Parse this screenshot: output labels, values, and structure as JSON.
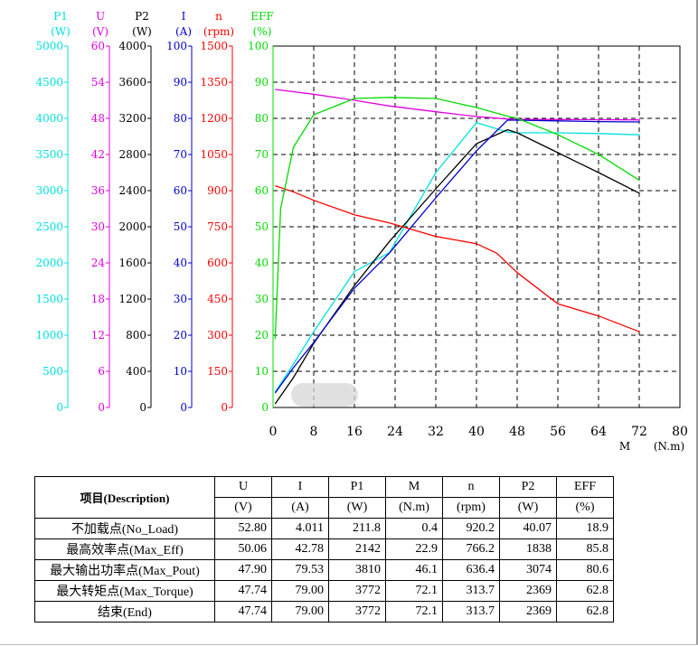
{
  "chart_data": {
    "type": "line",
    "x_axis": {
      "label": "M",
      "unit": "(N.m)",
      "range": [
        0,
        80
      ],
      "ticks": [
        "0",
        "8",
        "16",
        "24",
        "32",
        "40",
        "48",
        "56",
        "64",
        "72",
        "80"
      ]
    },
    "y_axes": [
      {
        "id": "P1",
        "label": "P1",
        "unit": "(W)",
        "color": "#00e0e0",
        "range": [
          0,
          5000
        ],
        "ticks": [
          "0",
          "500",
          "1000",
          "1500",
          "2000",
          "2500",
          "3000",
          "3500",
          "4000",
          "4500",
          "5000"
        ]
      },
      {
        "id": "U",
        "label": "U",
        "unit": "(V)",
        "color": "#e000e0",
        "range": [
          0,
          60
        ],
        "ticks": [
          "0",
          "6",
          "12",
          "18",
          "24",
          "30",
          "36",
          "42",
          "48",
          "54",
          "60"
        ]
      },
      {
        "id": "P2",
        "label": "P2",
        "unit": "(W)",
        "color": "#000000",
        "range": [
          0,
          4000
        ],
        "ticks": [
          "0",
          "400",
          "800",
          "1200",
          "1600",
          "2000",
          "2400",
          "2800",
          "3200",
          "3600",
          "4000"
        ]
      },
      {
        "id": "I",
        "label": "I",
        "unit": "(A)",
        "color": "#0000cc",
        "range": [
          0,
          100
        ],
        "ticks": [
          "0",
          "10",
          "20",
          "30",
          "40",
          "50",
          "60",
          "70",
          "80",
          "90",
          "100"
        ]
      },
      {
        "id": "n",
        "label": "n",
        "unit": "(rpm)",
        "color": "#ff0000",
        "range": [
          0,
          1500
        ],
        "ticks": [
          "0",
          "150",
          "300",
          "450",
          "600",
          "750",
          "900",
          "1050",
          "1200",
          "1350",
          "1500"
        ]
      },
      {
        "id": "EFF",
        "label": "EFF",
        "unit": "(%)",
        "color": "#00dd00",
        "range": [
          0,
          100
        ],
        "ticks": [
          "0",
          "10",
          "20",
          "30",
          "40",
          "50",
          "60",
          "70",
          "80",
          "90",
          "100"
        ]
      }
    ],
    "series": [
      {
        "axis": "P1",
        "color": "#00e0e0",
        "x": [
          0.4,
          4,
          8,
          16,
          22.9,
          32,
          40,
          46.1,
          48,
          56,
          64,
          72.1
        ],
        "y": [
          211.8,
          600,
          1050,
          1880,
          2142,
          3250,
          3940,
          3810,
          3800,
          3800,
          3790,
          3772
        ]
      },
      {
        "axis": "U",
        "color": "#e000e0",
        "x": [
          0.4,
          8,
          16,
          22.9,
          32,
          40,
          46.1,
          48,
          56,
          64,
          72.1
        ],
        "y": [
          52.8,
          52.0,
          51.0,
          50.06,
          49.1,
          48.3,
          47.9,
          47.85,
          47.8,
          47.78,
          47.74
        ]
      },
      {
        "axis": "P2",
        "color": "#000000",
        "x": [
          0.4,
          4,
          8,
          16,
          22.9,
          32,
          40,
          46.1,
          48,
          56,
          64,
          72.1
        ],
        "y": [
          40.07,
          330,
          710,
          1350,
          1838,
          2420,
          2920,
          3074,
          3040,
          2820,
          2600,
          2369
        ]
      },
      {
        "axis": "I",
        "color": "#0000cc",
        "x": [
          0.4,
          4,
          8,
          16,
          22.9,
          32,
          40,
          46.1,
          48,
          56,
          64,
          72.1
        ],
        "y": [
          4.011,
          11,
          18,
          33,
          42.78,
          58,
          71,
          79.53,
          79.5,
          79.3,
          79.1,
          79.0
        ]
      },
      {
        "axis": "n",
        "color": "#ff0000",
        "x": [
          0.4,
          4,
          8,
          16,
          22.9,
          32,
          40,
          44,
          48,
          56,
          64,
          72.1
        ],
        "y": [
          920.2,
          895,
          860,
          800,
          766.2,
          710,
          680,
          640,
          560,
          430,
          380,
          313.7
        ]
      },
      {
        "axis": "EFF",
        "color": "#00dd00",
        "x": [
          0.4,
          1.5,
          4,
          8,
          16,
          22.9,
          32,
          40,
          46.1,
          48,
          56,
          64,
          72.1
        ],
        "y": [
          18.9,
          55,
          72,
          81,
          85.5,
          85.8,
          85.5,
          83,
          80.6,
          80,
          75.5,
          70,
          62.8
        ]
      }
    ],
    "grid": true
  },
  "table": {
    "corner_header": "项目(Description)",
    "columns": [
      {
        "name": "U",
        "unit": "(V)"
      },
      {
        "name": "I",
        "unit": "(A)"
      },
      {
        "name": "P1",
        "unit": "(W)"
      },
      {
        "name": "M",
        "unit": "(N.m)"
      },
      {
        "name": "n",
        "unit": "(rpm)"
      },
      {
        "name": "P2",
        "unit": "(W)"
      },
      {
        "name": "EFF",
        "unit": "(%)"
      }
    ],
    "rows": [
      {
        "label": "不加载点(No_Load)",
        "values": [
          "52.80",
          "4.011",
          "211.8",
          "0.4",
          "920.2",
          "40.07",
          "18.9"
        ]
      },
      {
        "label": "最高效率点(Max_Eff)",
        "values": [
          "50.06",
          "42.78",
          "2142",
          "22.9",
          "766.2",
          "1838",
          "85.8"
        ]
      },
      {
        "label": "最大输出功率点(Max_Pout)",
        "values": [
          "47.90",
          "79.53",
          "3810",
          "46.1",
          "636.4",
          "3074",
          "80.6"
        ]
      },
      {
        "label": "最大转矩点(Max_Torque)",
        "values": [
          "47.74",
          "79.00",
          "3772",
          "72.1",
          "313.7",
          "2369",
          "62.8"
        ]
      },
      {
        "label": "结束(End)",
        "values": [
          "47.74",
          "79.00",
          "3772",
          "72.1",
          "313.7",
          "2369",
          "62.8"
        ]
      }
    ]
  }
}
